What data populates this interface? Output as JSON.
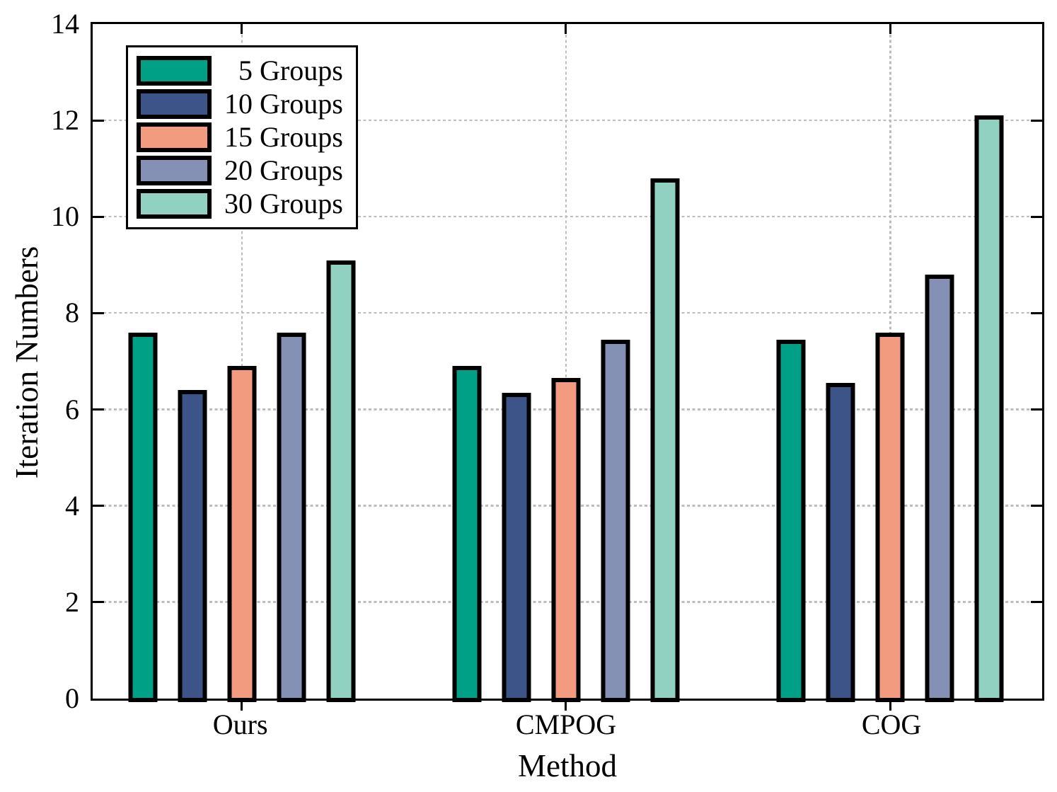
{
  "chart_data": {
    "type": "bar",
    "title": "",
    "xlabel": "Method",
    "ylabel": "Iteration Numbers",
    "categories": [
      "Ours",
      "CMPOG",
      "COG"
    ],
    "series": [
      {
        "name": "5 Groups",
        "color": "#00A087",
        "values": [
          7.6,
          6.9,
          7.45
        ]
      },
      {
        "name": "10 Groups",
        "color": "#3C5488",
        "values": [
          6.4,
          6.35,
          6.55
        ]
      },
      {
        "name": "15 Groups",
        "color": "#F39B7F",
        "values": [
          6.9,
          6.65,
          7.6
        ]
      },
      {
        "name": "20 Groups",
        "color": "#8491B4",
        "values": [
          7.6,
          7.45,
          8.8
        ]
      },
      {
        "name": "30 Groups",
        "color": "#91D1C2",
        "values": [
          9.1,
          10.8,
          12.1
        ]
      }
    ],
    "ylim": [
      0,
      14
    ],
    "yticks": [
      0,
      2,
      4,
      6,
      8,
      10,
      12,
      14
    ],
    "grid": true,
    "grid_style": "dotted",
    "grid_color": "#bdbdbd",
    "bar_edge_color": "#000000",
    "legend_position": "top-left",
    "legend_entries": [
      "5 Groups",
      "10 Groups",
      "15 Groups",
      "20 Groups",
      "30 Groups"
    ]
  }
}
